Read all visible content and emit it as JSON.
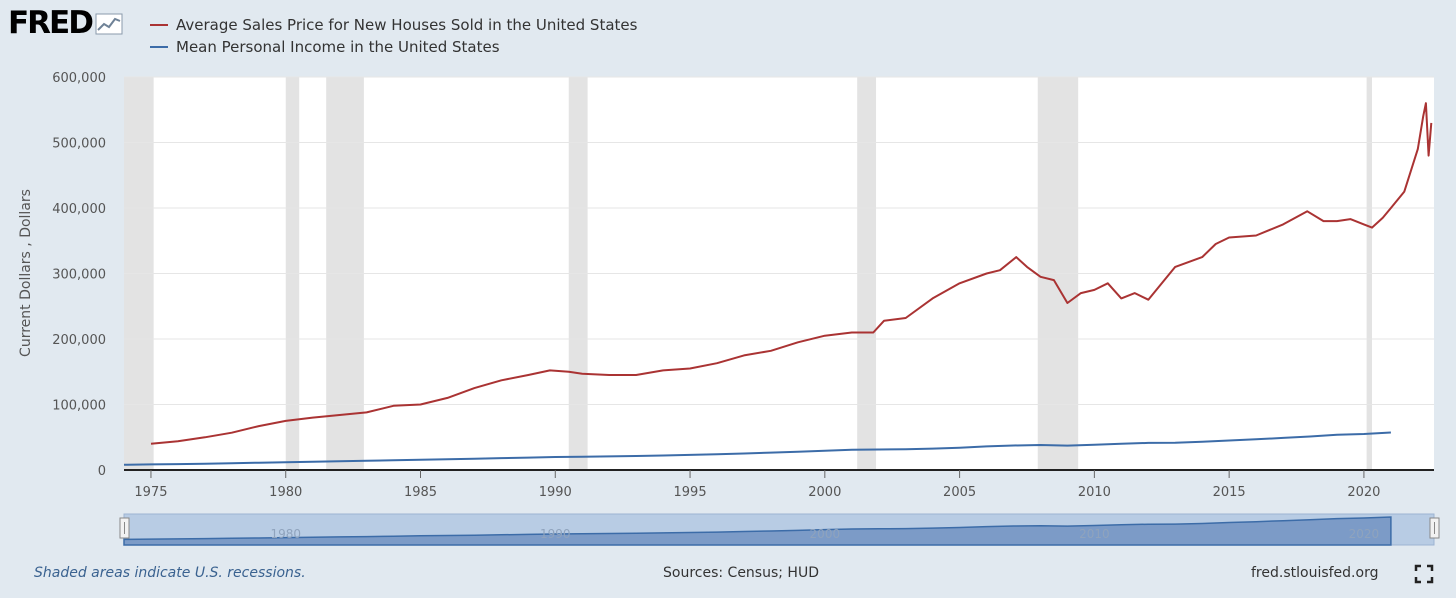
{
  "logo": {
    "text": "FRED",
    "icon": "chart-line-icon"
  },
  "legend": [
    {
      "label": "Average Sales Price for New Houses Sold in the United States",
      "color": "#aa3333"
    },
    {
      "label": "Mean Personal Income in the United States",
      "color": "#3c6ca8"
    }
  ],
  "footer": {
    "note": "Shaded areas indicate U.S. recessions.",
    "source": "Sources: Census; HUD",
    "site": "fred.stlouisfed.org",
    "fullscreen_icon": "fullscreen-icon"
  },
  "chart_data": {
    "type": "line",
    "ylabel": "Current Dollars , Dollars",
    "xlim": [
      1974.0,
      2022.6
    ],
    "ylim": [
      0,
      600000
    ],
    "yticks": [
      {
        "value": 0,
        "label": "0"
      },
      {
        "value": 100000,
        "label": "100,000"
      },
      {
        "value": 200000,
        "label": "200,000"
      },
      {
        "value": 300000,
        "label": "300,000"
      },
      {
        "value": 400000,
        "label": "400,000"
      },
      {
        "value": 500000,
        "label": "500,000"
      },
      {
        "value": 600000,
        "label": "600,000"
      }
    ],
    "xticks": [
      {
        "value": 1975,
        "label": "1975"
      },
      {
        "value": 1980,
        "label": "1980"
      },
      {
        "value": 1985,
        "label": "1985"
      },
      {
        "value": 1990,
        "label": "1990"
      },
      {
        "value": 1995,
        "label": "1995"
      },
      {
        "value": 2000,
        "label": "2000"
      },
      {
        "value": 2005,
        "label": "2005"
      },
      {
        "value": 2010,
        "label": "2010"
      },
      {
        "value": 2015,
        "label": "2015"
      },
      {
        "value": 2020,
        "label": "2020"
      }
    ],
    "recessions": [
      [
        1974.0,
        1975.1
      ],
      [
        1980.0,
        1980.5
      ],
      [
        1981.5,
        1982.9
      ],
      [
        1990.5,
        1991.2
      ],
      [
        2001.2,
        2001.9
      ],
      [
        2007.9,
        2009.4
      ],
      [
        2020.1,
        2020.3
      ]
    ],
    "series": [
      {
        "name": "Average Sales Price for New Houses Sold in the United States",
        "color": "#aa3333",
        "x": [
          1975.0,
          1976.0,
          1977.0,
          1978.0,
          1979.0,
          1980.0,
          1981.0,
          1982.0,
          1983.0,
          1984.0,
          1985.0,
          1986.0,
          1987.0,
          1988.0,
          1989.0,
          1989.8,
          1990.5,
          1991.0,
          1992.0,
          1993.0,
          1994.0,
          1995.0,
          1996.0,
          1997.0,
          1998.0,
          1999.0,
          2000.0,
          2001.0,
          2001.8,
          2002.2,
          2003.0,
          2004.0,
          2005.0,
          2006.0,
          2006.5,
          2007.1,
          2007.5,
          2008.0,
          2008.5,
          2009.0,
          2009.5,
          2010.0,
          2010.5,
          2011.0,
          2011.5,
          2012.0,
          2013.0,
          2014.0,
          2014.5,
          2015.0,
          2016.0,
          2017.0,
          2017.9,
          2018.5,
          2019.0,
          2019.5,
          2020.0,
          2020.3,
          2020.7,
          2021.0,
          2021.5,
          2022.0,
          2022.2,
          2022.3,
          2022.4,
          2022.5
        ],
        "values": [
          40000,
          44000,
          50000,
          57000,
          67000,
          75000,
          80000,
          84000,
          88000,
          98000,
          100000,
          110000,
          125000,
          137000,
          145000,
          152000,
          150000,
          147000,
          145000,
          145000,
          152000,
          155000,
          163000,
          175000,
          182000,
          195000,
          205000,
          210000,
          210000,
          228000,
          232000,
          262000,
          285000,
          300000,
          305000,
          325000,
          310000,
          295000,
          290000,
          255000,
          270000,
          275000,
          285000,
          262000,
          270000,
          260000,
          310000,
          325000,
          345000,
          355000,
          358000,
          375000,
          395000,
          380000,
          380000,
          383000,
          375000,
          370000,
          385000,
          400000,
          425000,
          490000,
          540000,
          560000,
          480000,
          530000
        ]
      },
      {
        "name": "Mean Personal Income in the United States",
        "color": "#3c6ca8",
        "x": [
          1974,
          1975,
          1976,
          1977,
          1978,
          1979,
          1980,
          1981,
          1982,
          1983,
          1984,
          1985,
          1986,
          1987,
          1988,
          1989,
          1990,
          1991,
          1992,
          1993,
          1994,
          1995,
          1996,
          1997,
          1998,
          1999,
          2000,
          2001,
          2002,
          2003,
          2004,
          2005,
          2006,
          2007,
          2008,
          2009,
          2010,
          2011,
          2012,
          2013,
          2014,
          2015,
          2016,
          2017,
          2018,
          2019,
          2020,
          2021
        ],
        "values": [
          7900,
          8500,
          9000,
          9600,
          10300,
          11100,
          11900,
          12700,
          13400,
          14000,
          15000,
          15800,
          16500,
          17200,
          18100,
          19000,
          19800,
          20200,
          20800,
          21400,
          22200,
          23000,
          24000,
          25200,
          26500,
          27800,
          29500,
          30800,
          31300,
          31700,
          32700,
          34000,
          36000,
          37400,
          38100,
          37200,
          38500,
          40000,
          41400,
          41500,
          43000,
          45000,
          46800,
          49000,
          51200,
          53700,
          55000,
          57200
        ]
      }
    ],
    "navigator": {
      "xlim": [
        1974.0,
        2022.6
      ],
      "ticks": [
        {
          "value": 1980,
          "label": "1980"
        },
        {
          "value": 1990,
          "label": "1990"
        },
        {
          "value": 2000,
          "label": "2000"
        },
        {
          "value": 2010,
          "label": "2010"
        },
        {
          "value": 2020,
          "label": "2020"
        }
      ]
    }
  }
}
